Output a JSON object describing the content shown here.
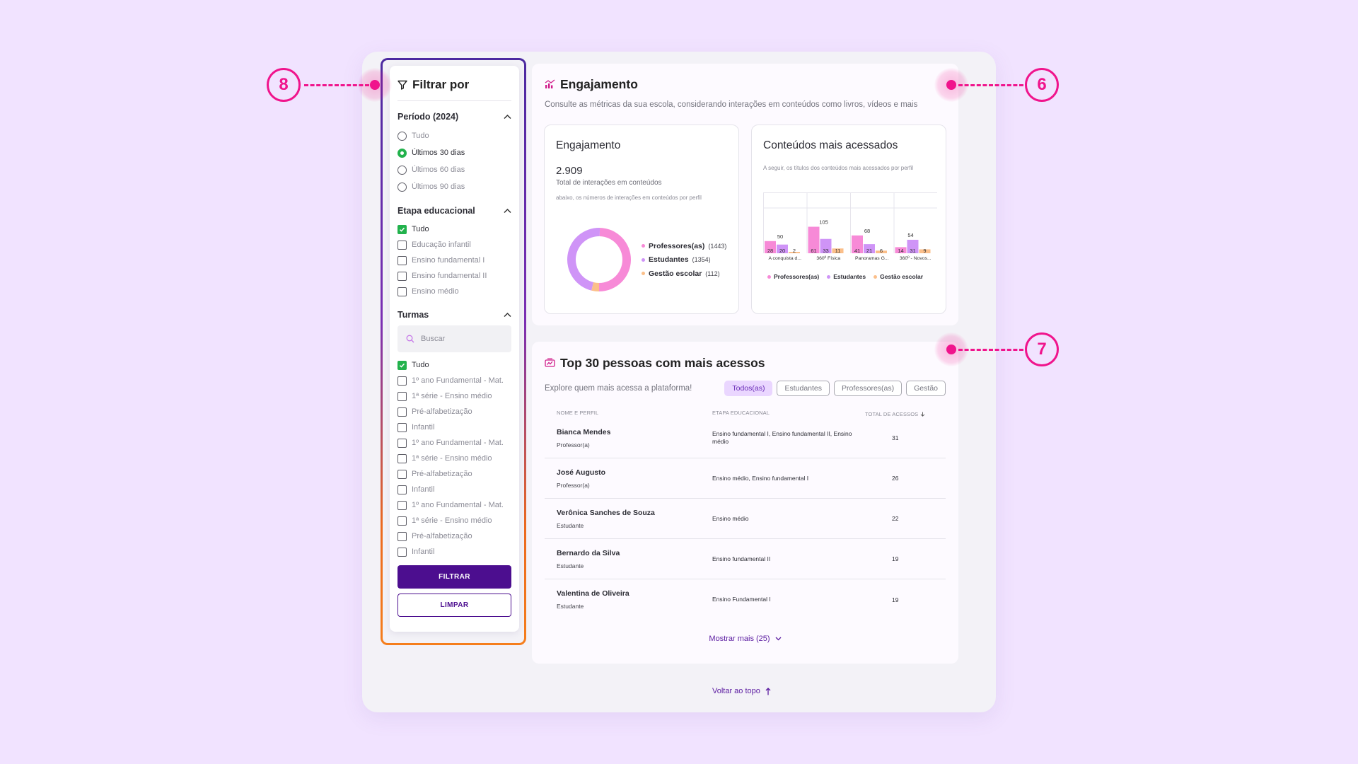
{
  "filter": {
    "title": "Filtrar por",
    "periodo": {
      "title": "Período (2024)",
      "options": [
        {
          "label": "Tudo",
          "selected": false
        },
        {
          "label": "Últimos 30 dias",
          "selected": true
        },
        {
          "label": "Últimos 60 dias",
          "selected": false
        },
        {
          "label": "Últimos 90 dias",
          "selected": false
        }
      ]
    },
    "etapa": {
      "title": "Etapa educacional",
      "options": [
        {
          "label": "Tudo",
          "checked": true
        },
        {
          "label": "Educação infantil",
          "checked": false
        },
        {
          "label": "Ensino fundamental I",
          "checked": false
        },
        {
          "label": "Ensino fundamental II",
          "checked": false
        },
        {
          "label": "Ensino médio",
          "checked": false
        }
      ]
    },
    "turmas": {
      "title": "Turmas",
      "search_placeholder": "Buscar",
      "options": [
        {
          "label": "Tudo",
          "checked": true
        },
        {
          "label": "1º ano Fundamental - Mat.",
          "checked": false
        },
        {
          "label": "1ª série - Ensino médio",
          "checked": false
        },
        {
          "label": "Pré-alfabetização",
          "checked": false
        },
        {
          "label": "Infantil",
          "checked": false
        },
        {
          "label": "1º ano Fundamental - Mat.",
          "checked": false
        },
        {
          "label": "1ª série - Ensino médio",
          "checked": false
        },
        {
          "label": "Pré-alfabetização",
          "checked": false
        },
        {
          "label": "Infantil",
          "checked": false
        },
        {
          "label": "1º ano Fundamental - Mat.",
          "checked": false
        },
        {
          "label": "1ª série - Ensino médio",
          "checked": false
        },
        {
          "label": "Pré-alfabetização",
          "checked": false
        },
        {
          "label": "Infantil",
          "checked": false
        }
      ]
    },
    "filter_button": "FILTRAR",
    "clear_button": "LIMPAR"
  },
  "engagement": {
    "title": "Engajamento",
    "subtitle": "Consulte as métricas da sua escola, considerando interações em conteúdos como livros, vídeos e mais",
    "summary": {
      "title": "Engajamento",
      "total": "2.909",
      "total_label": "Total de interações em conteúdos",
      "note": "abaixo, os números de interações em conteúdos por perfil",
      "legend": [
        {
          "label": "Professores(as)",
          "count": "(1443)",
          "color": "#f78ad7"
        },
        {
          "label": "Estudantes",
          "count": "(1354)",
          "color": "#cf94f7"
        },
        {
          "label": "Gestão escolar",
          "count": "(112)",
          "color": "#fbbf8a"
        }
      ]
    },
    "top_content": {
      "title": "Conteúdos mais acessados",
      "description": "A seguir, os títulos dos conteúdos mais acessados por perfil"
    }
  },
  "chart_data": [
    {
      "type": "pie",
      "categories": [
        "Professores(as)",
        "Estudantes",
        "Gestão escolar"
      ],
      "values": [
        1443,
        1354,
        112
      ],
      "colors": [
        "#f78ad7",
        "#cf94f7",
        "#fbbf8a"
      ],
      "donut": true
    },
    {
      "type": "bar",
      "categories": [
        "A conquista d...",
        "360º Física",
        "Panoramas G...",
        "360º - Novos..."
      ],
      "series": [
        {
          "name": "Professores(as)",
          "values": [
            28,
            61,
            41,
            14
          ],
          "color": "#f78ad7"
        },
        {
          "name": "Estudantes",
          "values": [
            20,
            33,
            21,
            31
          ],
          "color": "#cf94f7"
        },
        {
          "name": "Gestão escolar",
          "values": [
            2,
            11,
            6,
            9
          ],
          "color": "#fbbf8a"
        }
      ],
      "top_labels": [
        "50",
        "105",
        "68",
        "54"
      ],
      "ylim": [
        0,
        140
      ],
      "grid": true,
      "legend_position": "bottom"
    }
  ],
  "top30": {
    "title": "Top 30 pessoas com mais acessos",
    "subtitle": "Explore quem mais acessa a plataforma!",
    "tabs": [
      {
        "label": "Todos(as)",
        "active": true
      },
      {
        "label": "Estudantes",
        "active": false
      },
      {
        "label": "Professores(as)",
        "active": false
      },
      {
        "label": "Gestão",
        "active": false
      }
    ],
    "columns": {
      "name": "NOME E PERFIL",
      "stage": "ETAPA EDUCACIONAL",
      "total": "TOTAL DE ACESSOS"
    },
    "rows": [
      {
        "name": "Bianca Mendes",
        "role": "Professor(a)",
        "stage": "Ensino fundamental I, Ensino fundamental II, Ensino médio",
        "total": "31"
      },
      {
        "name": "José Augusto",
        "role": "Professor(a)",
        "stage": "Ensino médio, Ensino fundamental I",
        "total": "26"
      },
      {
        "name": "Verônica Sanches de Souza",
        "role": "Estudante",
        "stage": "Ensino médio",
        "total": "22"
      },
      {
        "name": "Bernardo da Silva",
        "role": "Estudante",
        "stage": "Ensino fundamental II",
        "total": "19"
      },
      {
        "name": "Valentina de Oliveira",
        "role": "Estudante",
        "stage": "Ensino Fundamental I",
        "total": "19"
      }
    ],
    "show_more": "Mostrar mais (25)"
  },
  "back_to_top": "Voltar ao topo",
  "annotations": {
    "a8": "8",
    "a6": "6",
    "a7": "7"
  },
  "colors": {
    "accent": "#4c0e8f",
    "callout": "#f0148c",
    "check": "#22b24c"
  }
}
